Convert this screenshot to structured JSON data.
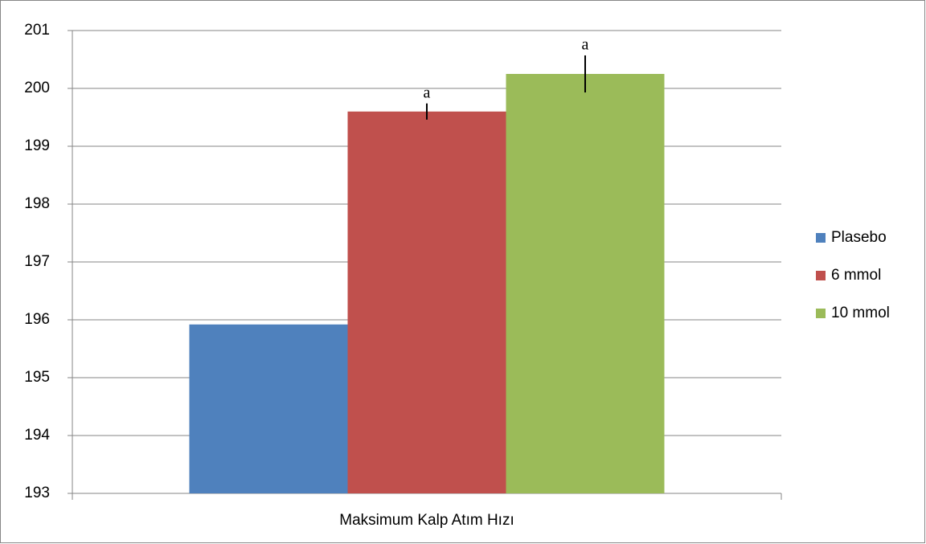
{
  "chart_data": {
    "type": "bar",
    "categories": [
      "Maksimum Kalp Atım Hızı"
    ],
    "series": [
      {
        "name": "Plasebo",
        "color": "#4f81bd",
        "values": [
          195.92
        ]
      },
      {
        "name": "6 mmol",
        "color": "#c0504d",
        "values": [
          199.6
        ],
        "errors": [
          0.14
        ],
        "annotation": "a"
      },
      {
        "name": "10 mmol",
        "color": "#9bbb59",
        "values": [
          200.25
        ],
        "errors": [
          0.32
        ],
        "annotation": "a"
      }
    ],
    "ylim": [
      193,
      201
    ],
    "yticks": [
      193,
      194,
      195,
      196,
      197,
      198,
      199,
      200,
      201
    ],
    "grid": true,
    "legend": "right"
  }
}
